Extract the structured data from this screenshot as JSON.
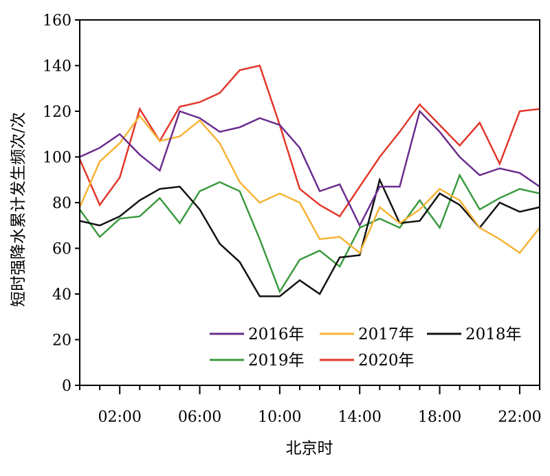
{
  "chart_data": {
    "type": "line",
    "title": "",
    "xlabel": "北京时",
    "ylabel": "短时强降水累计发生频次/次",
    "ylim": [
      0,
      160
    ],
    "xlim": [
      0,
      23
    ],
    "y_ticks": [
      0,
      20,
      40,
      60,
      80,
      100,
      120,
      140,
      160
    ],
    "x_tick_hours": [
      2,
      6,
      10,
      14,
      18,
      22
    ],
    "x_tick_labels": [
      "02:00",
      "06:00",
      "10:00",
      "14:00",
      "18:00",
      "22:00"
    ],
    "x": [
      0,
      1,
      2,
      3,
      4,
      5,
      6,
      7,
      8,
      9,
      10,
      11,
      12,
      13,
      14,
      15,
      16,
      17,
      18,
      19,
      20,
      21,
      22,
      23
    ],
    "grid": false,
    "legend_position": "bottom-right",
    "series": [
      {
        "name": "2016年",
        "color": "#6a2c8e",
        "values": [
          100,
          104,
          110,
          101,
          94,
          120,
          117,
          111,
          113,
          117,
          114,
          104,
          85,
          88,
          70,
          87,
          87,
          120,
          111,
          100,
          92,
          95,
          93,
          87
        ]
      },
      {
        "name": "2017年",
        "color": "#f5b335",
        "values": [
          78,
          98,
          106,
          118,
          107,
          109,
          116,
          106,
          89,
          80,
          84,
          80,
          64,
          65,
          58,
          78,
          71,
          77,
          86,
          81,
          69,
          64,
          58,
          69
        ]
      },
      {
        "name": "2018年",
        "color": "#111111",
        "values": [
          72,
          70,
          74,
          81,
          86,
          87,
          77,
          62,
          54,
          39,
          39,
          46,
          40,
          56,
          57,
          90,
          71,
          72,
          84,
          79,
          69,
          80,
          76,
          78
        ]
      },
      {
        "name": "2019年",
        "color": "#3a9a3e",
        "values": [
          77,
          65,
          73,
          74,
          82,
          71,
          85,
          89,
          85,
          64,
          41,
          55,
          59,
          52,
          69,
          73,
          69,
          81,
          69,
          92,
          77,
          82,
          86,
          84
        ]
      },
      {
        "name": "2020年",
        "color": "#e2362a",
        "values": [
          99,
          79,
          91,
          121,
          107,
          122,
          124,
          128,
          138,
          140,
          114,
          86,
          79,
          74,
          87,
          100,
          111,
          123,
          114,
          105,
          115,
          97,
          120,
          121
        ]
      }
    ]
  }
}
